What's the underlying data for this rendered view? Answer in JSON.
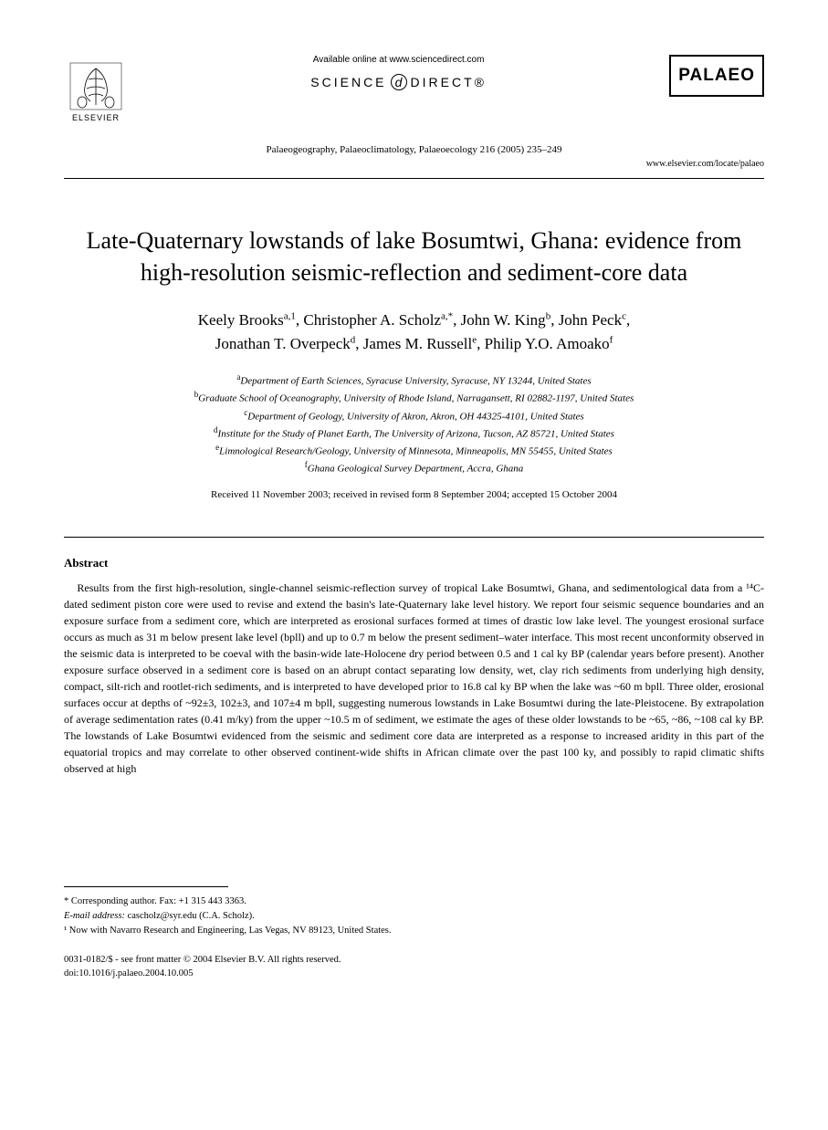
{
  "header": {
    "elsevier_label": "ELSEVIER",
    "available_online": "Available online at www.sciencedirect.com",
    "sciencedirect_left": "SCIENCE",
    "sciencedirect_d": "d",
    "sciencedirect_right": "DIRECT®",
    "palaeo_logo": "PALAEO",
    "citation": "Palaeogeography, Palaeoclimatology, Palaeoecology 216 (2005) 235–249",
    "url": "www.elsevier.com/locate/palaeo"
  },
  "title": "Late-Quaternary lowstands of lake Bosumtwi, Ghana: evidence from high-resolution seismic-reflection and sediment-core data",
  "authors": [
    {
      "name": "Keely Brooks",
      "sup": "a,1"
    },
    {
      "name": "Christopher A. Scholz",
      "sup": "a,*"
    },
    {
      "name": "John W. King",
      "sup": "b"
    },
    {
      "name": "John Peck",
      "sup": "c"
    },
    {
      "name": "Jonathan T. Overpeck",
      "sup": "d"
    },
    {
      "name": "James M. Russell",
      "sup": "e"
    },
    {
      "name": "Philip Y.O. Amoako",
      "sup": "f"
    }
  ],
  "affiliations": [
    {
      "sup": "a",
      "text": "Department of Earth Sciences, Syracuse University, Syracuse, NY 13244, United States"
    },
    {
      "sup": "b",
      "text": "Graduate School of Oceanography, University of Rhode Island, Narragansett, RI 02882-1197, United States"
    },
    {
      "sup": "c",
      "text": "Department of Geology, University of Akron, Akron, OH 44325-4101, United States"
    },
    {
      "sup": "d",
      "text": "Institute for the Study of Planet Earth, The University of Arizona, Tucson, AZ 85721, United States"
    },
    {
      "sup": "e",
      "text": "Limnological Research/Geology, University of Minnesota, Minneapolis, MN 55455, United States"
    },
    {
      "sup": "f",
      "text": "Ghana Geological Survey Department, Accra, Ghana"
    }
  ],
  "dates": "Received 11 November 2003; received in revised form 8 September 2004; accepted 15 October 2004",
  "abstract": {
    "heading": "Abstract",
    "body": "Results from the first high-resolution, single-channel seismic-reflection survey of tropical Lake Bosumtwi, Ghana, and sedimentological data from a ¹⁴C-dated sediment piston core were used to revise and extend the basin's late-Quaternary lake level history. We report four seismic sequence boundaries and an exposure surface from a sediment core, which are interpreted as erosional surfaces formed at times of drastic low lake level. The youngest erosional surface occurs as much as 31 m below present lake level (bpll) and up to 0.7 m below the present sediment–water interface. This most recent unconformity observed in the seismic data is interpreted to be coeval with the basin-wide late-Holocene dry period between 0.5 and 1 cal ky BP (calendar years before present). Another exposure surface observed in a sediment core is based on an abrupt contact separating low density, wet, clay rich sediments from underlying high density, compact, silt-rich and rootlet-rich sediments, and is interpreted to have developed prior to 16.8 cal ky BP when the lake was ~60 m bpll. Three older, erosional surfaces occur at depths of ~92±3, 102±3, and 107±4 m bpll, suggesting numerous lowstands in Lake Bosumtwi during the late-Pleistocene. By extrapolation of average sedimentation rates (0.41 m/ky) from the upper ~10.5 m of sediment, we estimate the ages of these older lowstands to be ~65, ~86, ~108 cal ky BP. The lowstands of Lake Bosumtwi evidenced from the seismic and sediment core data are interpreted as a response to increased aridity in this part of the equatorial tropics and may correlate to other observed continent-wide shifts in African climate over the past 100 ky, and possibly to rapid climatic shifts observed at high"
  },
  "footnotes": {
    "corresponding": "* Corresponding author. Fax: +1 315 443 3363.",
    "email_label": "E-mail address:",
    "email_value": "cascholz@syr.edu (C.A. Scholz).",
    "now_with": "¹ Now with Navarro Research and Engineering, Las Vegas, NV 89123, United States."
  },
  "bottom": {
    "copyright": "0031-0182/$ - see front matter © 2004 Elsevier B.V. All rights reserved.",
    "doi": "doi:10.1016/j.palaeo.2004.10.005"
  },
  "colors": {
    "text": "#000000",
    "background": "#ffffff"
  },
  "typography": {
    "title_fontsize": 26,
    "authors_fontsize": 17,
    "affil_fontsize": 11,
    "body_fontsize": 12,
    "footnote_fontsize": 10.5
  }
}
